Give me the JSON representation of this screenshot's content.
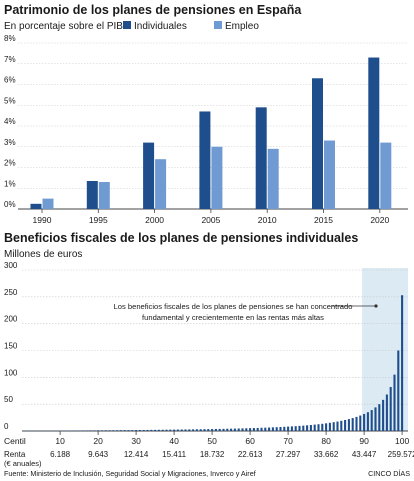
{
  "colors": {
    "dark": "#1f4e8c",
    "light": "#6f9bd2",
    "highlight": "#dbeaf3",
    "grid": "#c9c9c9",
    "text": "#1a1a1a",
    "muted": "#555555"
  },
  "chart_data": [
    {
      "type": "bar",
      "title": "Patrimonio de los planes de pensiones en España",
      "subtitle": "En porcentaje sobre el PIB",
      "categories": [
        "1990",
        "1995",
        "2000",
        "2005",
        "2010",
        "2015",
        "2020"
      ],
      "yticks": [
        "0%",
        "1%",
        "2%",
        "3%",
        "4%",
        "5%",
        "6%",
        "7%",
        "8%"
      ],
      "ylim": [
        0,
        8
      ],
      "legend_position": "top",
      "grid": true,
      "series": [
        {
          "name": "Individuales",
          "color": "#1f4e8c",
          "values": [
            0.25,
            1.35,
            3.2,
            4.7,
            4.9,
            6.3,
            7.3
          ]
        },
        {
          "name": "Empleo",
          "color": "#6f9bd2",
          "values": [
            0.5,
            1.3,
            2.4,
            3.0,
            2.9,
            3.3,
            3.2
          ]
        }
      ]
    },
    {
      "type": "bar",
      "title": "Beneficios fiscales de los planes de pensiones individuales",
      "subtitle": "Millones de euros",
      "ylim": [
        0,
        300
      ],
      "yticks": [
        "0",
        "50",
        "100",
        "150",
        "200",
        "250",
        "300"
      ],
      "grid": true,
      "x": [
        1,
        2,
        3,
        4,
        5,
        6,
        7,
        8,
        9,
        10,
        11,
        12,
        13,
        14,
        15,
        16,
        17,
        18,
        19,
        20,
        21,
        22,
        23,
        24,
        25,
        26,
        27,
        28,
        29,
        30,
        31,
        32,
        33,
        34,
        35,
        36,
        37,
        38,
        39,
        40,
        41,
        42,
        43,
        44,
        45,
        46,
        47,
        48,
        49,
        50,
        51,
        52,
        53,
        54,
        55,
        56,
        57,
        58,
        59,
        60,
        61,
        62,
        63,
        64,
        65,
        66,
        67,
        68,
        69,
        70,
        71,
        72,
        73,
        74,
        75,
        76,
        77,
        78,
        79,
        80,
        81,
        82,
        83,
        84,
        85,
        86,
        87,
        88,
        89,
        90,
        91,
        92,
        93,
        94,
        95,
        96,
        97,
        98,
        99,
        100
      ],
      "values": [
        0.2,
        0.3,
        0.4,
        0.5,
        0.5,
        0.6,
        0.6,
        0.7,
        0.7,
        0.8,
        0.8,
        0.9,
        0.9,
        1.0,
        1.0,
        1.1,
        1.1,
        1.2,
        1.2,
        1.3,
        1.3,
        1.4,
        1.4,
        1.5,
        1.5,
        1.6,
        1.6,
        1.7,
        1.7,
        1.8,
        1.9,
        1.9,
        2.0,
        2.1,
        2.1,
        2.2,
        2.3,
        2.4,
        2.5,
        2.6,
        2.7,
        2.8,
        2.9,
        3.0,
        3.1,
        3.2,
        3.3,
        3.4,
        3.5,
        3.6,
        3.8,
        3.9,
        4.0,
        4.2,
        4.3,
        4.5,
        4.7,
        4.9,
        5.1,
        5.3,
        5.5,
        5.7,
        6.0,
        6.2,
        6.5,
        6.8,
        7.1,
        7.4,
        7.8,
        8.2,
        8.6,
        9.0,
        9.5,
        10.0,
        10.6,
        11.2,
        11.9,
        12.6,
        13.4,
        14.3,
        15.3,
        16.4,
        17.6,
        19.0,
        20.5,
        22.2,
        24.1,
        26.3,
        28.8,
        31.7,
        35.0,
        39.0,
        44.0,
        50.0,
        58.0,
        68.0,
        82.0,
        105.0,
        150.0,
        253.0
      ],
      "highlight_range": [
        90,
        100
      ],
      "annotation": "Los beneficios fiscales de los planes de pensiones se han concentrado fundamental y crecientemente en las rentas más altas",
      "annotation_lines": [
        "Los beneficios fiscales de los planes de pensiones se han concentrado",
        "fundamental y crecientemente en las rentas más altas"
      ],
      "centil_label": "Centil",
      "centiles": [
        "10",
        "20",
        "30",
        "40",
        "50",
        "60",
        "70",
        "80",
        "90",
        "100"
      ],
      "renta_label_1": "Renta",
      "renta_label_2": "(€ anuales)",
      "renta": [
        "6.188",
        "9.643",
        "12.414",
        "15.411",
        "18.732",
        "22.613",
        "27.297",
        "33.662",
        "43.447",
        "259.572"
      ]
    }
  ],
  "footer": {
    "source": "Fuente: Ministerio de Inclusión, Seguridad Social y Migraciones, Inverco y Airef",
    "credit": "CINCO DÍAS"
  }
}
